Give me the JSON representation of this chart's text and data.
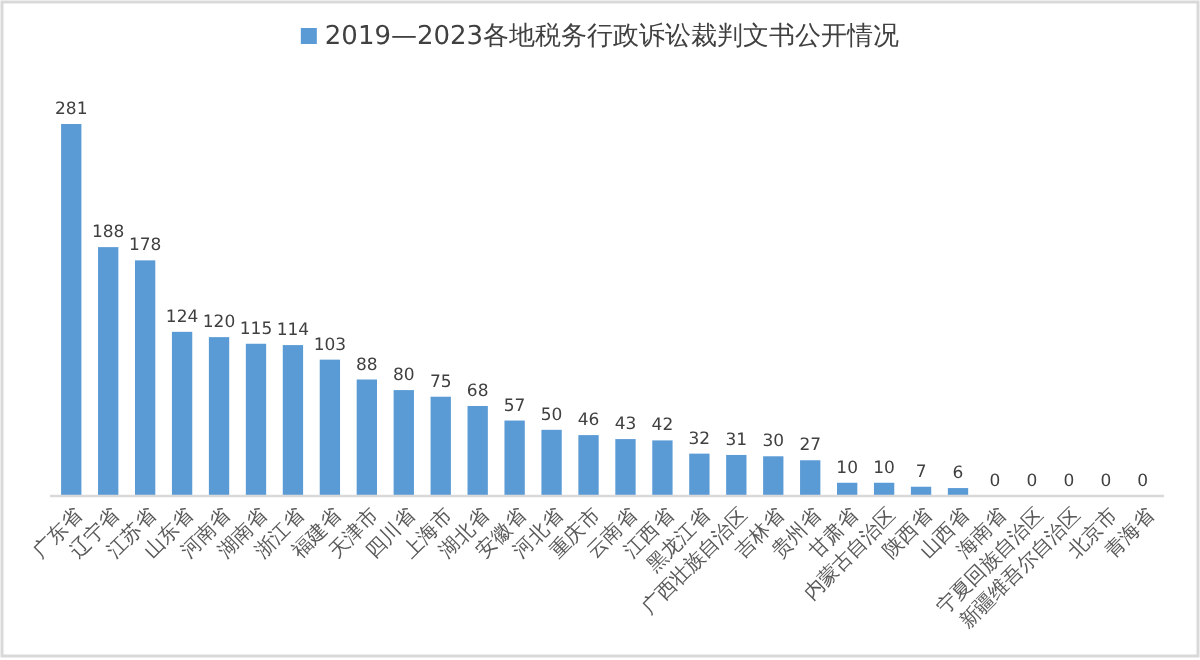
{
  "chart_data": {
    "type": "bar",
    "categories": [
      "广东省",
      "辽宁省",
      "江苏省",
      "山东省",
      "河南省",
      "湖南省",
      "浙江省",
      "福建省",
      "天津市",
      "四川省",
      "上海市",
      "湖北省",
      "安徽省",
      "河北省",
      "重庆市",
      "云南省",
      "江西省",
      "黑龙江省",
      "广西壮族自治区",
      "吉林省",
      "贵州省",
      "甘肃省",
      "内蒙古自治区",
      "陕西省",
      "山西省",
      "海南省",
      "宁夏回族自治区",
      "新疆维吾尔自治区",
      "北京市",
      "青海省"
    ],
    "series": [
      {
        "name": "2019—2023各地税务行政诉讼裁判文书公开情况",
        "color": "#5b9bd5",
        "values": [
          281,
          188,
          178,
          124,
          120,
          115,
          114,
          103,
          88,
          80,
          75,
          68,
          57,
          50,
          46,
          43,
          42,
          32,
          31,
          30,
          27,
          10,
          10,
          7,
          6,
          0,
          0,
          0,
          0,
          0
        ]
      }
    ],
    "data_labels": true,
    "legend": "top"
  }
}
